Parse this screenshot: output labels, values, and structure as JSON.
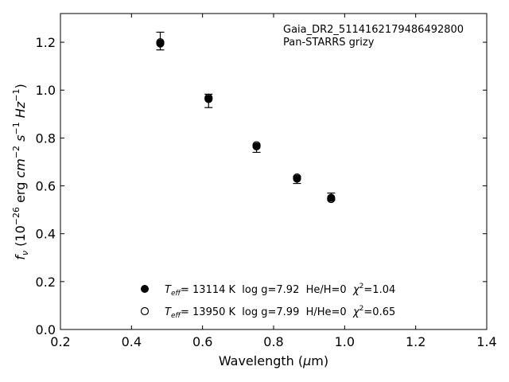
{
  "chart_data": {
    "type": "scatter",
    "annotation_lines": [
      "Gaia_DR2_5114162179486492800",
      "Pan-STARRS grizy"
    ],
    "xlabel": "Wavelength (μm)",
    "ylabel": "f_ν (10^-26 erg cm^-2 s^-1 Hz^-1)",
    "xlim": [
      0.2,
      1.4
    ],
    "ylim": [
      0.0,
      1.32
    ],
    "x_ticks": [
      "0.2",
      "0.4",
      "0.6",
      "0.8",
      "1.0",
      "1.2",
      "1.4"
    ],
    "y_ticks": [
      "0.0",
      "0.2",
      "0.4",
      "0.6",
      "0.8",
      "1.0",
      "1.2"
    ],
    "grid": false,
    "legend_position": "bottom-center",
    "series": [
      {
        "name": "T_eff= 13114 K  log g=7.92  He/H=0  χ²=1.04",
        "marker": "filled-circle",
        "x": [
          0.481,
          0.617,
          0.752,
          0.866,
          0.962
        ],
        "y": [
          1.195,
          0.963,
          0.765,
          0.63,
          0.55
        ]
      },
      {
        "name": "T_eff= 13950 K  log g=7.99  H/He=0  χ²=0.65",
        "marker": "open-circle",
        "x": [
          0.481,
          0.617,
          0.752,
          0.866,
          0.962
        ],
        "y": [
          1.2,
          0.968,
          0.77,
          0.635,
          0.545
        ]
      }
    ],
    "observed": {
      "x": [
        0.481,
        0.617,
        0.752,
        0.866,
        0.962
      ],
      "y": [
        1.205,
        0.955,
        0.755,
        0.625,
        0.555
      ],
      "yerr": [
        0.037,
        0.028,
        0.015,
        0.015,
        0.015
      ]
    },
    "legend": [
      {
        "pre": "T",
        "sub": "eff",
        "mid": "= 13114 K  log g=7.92  He/H=0  ",
        "chi": "χ",
        "sup": "2",
        "post": "=1.04"
      },
      {
        "pre": "T",
        "sub": "eff",
        "mid": "= 13950 K  log g=7.99  H/He=0  ",
        "chi": "χ",
        "sup": "2",
        "post": "=0.65"
      }
    ]
  }
}
